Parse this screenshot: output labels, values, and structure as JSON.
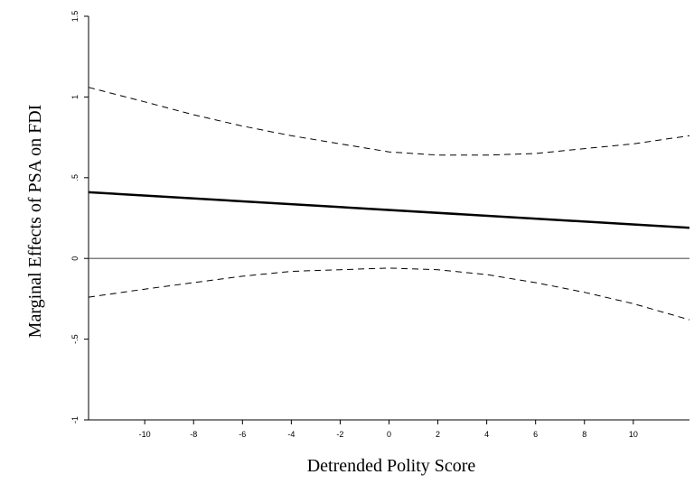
{
  "chart_data": {
    "type": "line",
    "title": "",
    "xlabel": "Detrended Polity Score",
    "ylabel": "Marginal Effects of PSA on FDI",
    "xlim": [
      -12.3,
      12.3
    ],
    "ylim": [
      -1.0,
      1.5
    ],
    "x_ticks": [
      -10,
      -8,
      -6,
      -4,
      -2,
      0,
      2,
      4,
      6,
      8,
      10
    ],
    "x_tick_labels": [
      "-10",
      "-8",
      "-6",
      "-4",
      "-2",
      "0",
      "2",
      "4",
      "6",
      "8",
      "10"
    ],
    "y_ticks": [
      -1,
      -0.5,
      0,
      0.5,
      1,
      1.5
    ],
    "y_tick_labels": [
      "-1",
      "-.5",
      "0",
      ".5",
      "1",
      "1.5"
    ],
    "grid": false,
    "reference_line": {
      "y": 0,
      "color": "#555555"
    },
    "series": [
      {
        "role": "estimate",
        "style": "solid",
        "color": "#000000",
        "x": [
          -12.3,
          12.3
        ],
        "y": [
          0.41,
          0.19
        ]
      },
      {
        "role": "upper-bound",
        "style": "dashed",
        "color": "#000000",
        "x": [
          -12.3,
          -10,
          -8,
          -6,
          -4,
          -2,
          0,
          2,
          4,
          6,
          8,
          10,
          12.3
        ],
        "y": [
          1.06,
          0.97,
          0.89,
          0.82,
          0.76,
          0.71,
          0.66,
          0.64,
          0.64,
          0.65,
          0.68,
          0.71,
          0.76
        ]
      },
      {
        "role": "lower-bound",
        "style": "dashed",
        "color": "#000000",
        "x": [
          -12.3,
          -10,
          -8,
          -6,
          -4,
          -2,
          0,
          2,
          4,
          6,
          8,
          10,
          12.3
        ],
        "y": [
          -0.24,
          -0.19,
          -0.15,
          -0.11,
          -0.08,
          -0.07,
          -0.06,
          -0.07,
          -0.1,
          -0.15,
          -0.21,
          -0.28,
          -0.38
        ]
      }
    ]
  }
}
